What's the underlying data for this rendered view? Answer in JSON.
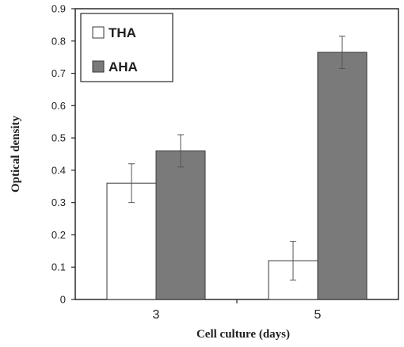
{
  "chart_data": {
    "type": "bar",
    "categories": [
      "3",
      "5"
    ],
    "series": [
      {
        "name": "THA",
        "values": [
          0.36,
          0.12
        ],
        "error": [
          0.06,
          0.06
        ],
        "color": "#ffffff"
      },
      {
        "name": "AHA",
        "values": [
          0.46,
          0.765
        ],
        "error": [
          0.05,
          0.05
        ],
        "color": "#7a7a7a"
      }
    ],
    "xlabel": "Cell culture (days)",
    "ylabel": "Optical density",
    "ylim": [
      0,
      0.9
    ],
    "yticks": [
      "0",
      "0.1",
      "0.2",
      "0.3",
      "0.4",
      "0.5",
      "0.6",
      "0.7",
      "0.8",
      "0.9"
    ],
    "grid": false,
    "legend_position": "top-left"
  }
}
